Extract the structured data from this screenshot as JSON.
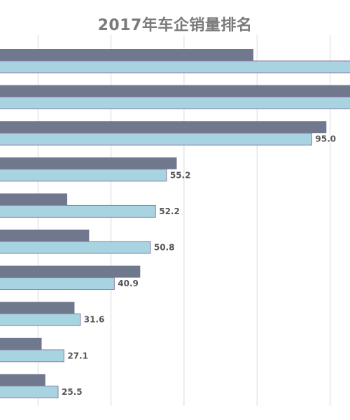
{
  "chart_data": {
    "type": "bar",
    "orientation": "horizontal",
    "title": "2017年车企销量排名",
    "xlabel": "",
    "ylabel": "",
    "categories": [
      "",
      "",
      "",
      "",
      "",
      "",
      "",
      "",
      "",
      ""
    ],
    "series": [
      {
        "values": [
          79,
          106,
          99,
          58,
          28,
          34,
          48,
          30,
          21,
          22
        ]
      },
      {
        "values": [
          110,
          108,
          95.0,
          55.2,
          52.2,
          50.8,
          40.9,
          31.6,
          27.1,
          25.5
        ]
      }
    ],
    "data_labels": [
      "",
      "",
      "95.0",
      "55.2",
      "52.2",
      "50.8",
      "40.9",
      "31.6",
      "27.1",
      "25.5"
    ],
    "xlim": [
      0,
      105
    ],
    "grid": true,
    "colors": {
      "series_a": "#6f788d",
      "series_b": "#a8d4e2",
      "series_b_border": "#8f7aa5",
      "grid": "#d9d9d9",
      "title": "#7a7a7a",
      "label": "#555555"
    }
  }
}
